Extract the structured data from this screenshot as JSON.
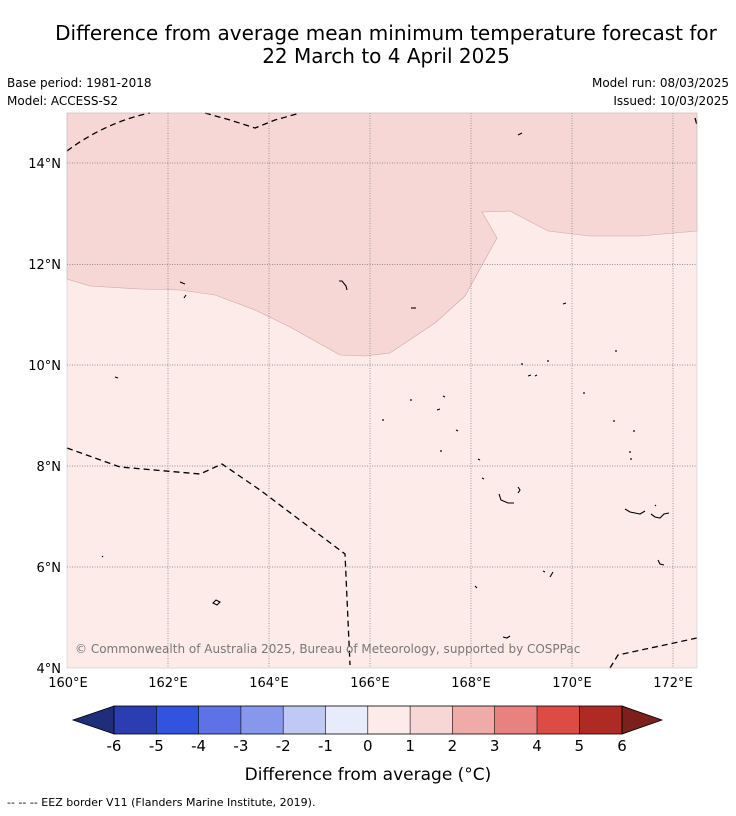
{
  "title": {
    "line1": "Difference from average mean minimum temperature forecast for",
    "line2": "22 March to 4 April 2025"
  },
  "meta": {
    "base_period": "Base period: 1981-2018",
    "model": "Model: ACCESS-S2",
    "model_run": "Model run: 08/03/2025",
    "issued": "Issued: 10/03/2025"
  },
  "map": {
    "lon_labels": [
      "160°E",
      "162°E",
      "164°E",
      "166°E",
      "168°E",
      "170°E",
      "172°E"
    ],
    "lat_labels": [
      "4°N",
      "6°N",
      "8°N",
      "10°N",
      "12°N",
      "14°N"
    ],
    "copyright": "© Commonwealth of Australia 2025, Bureau of Meteorology, supported by COSPPac",
    "extent": {
      "lon": [
        160,
        172.5
      ],
      "lat": [
        4,
        15
      ]
    },
    "colors": {
      "zone_plus_1_2": "#f7d7d5",
      "zone_0_1": "#fcebe9",
      "eez_border": "#000000"
    }
  },
  "legend": {
    "tick_labels": [
      "-6",
      "-5",
      "-4",
      "-3",
      "-2",
      "-1",
      "0",
      "1",
      "2",
      "3",
      "4",
      "5",
      "6"
    ],
    "colors": [
      "#1f2d7a",
      "#2a3eb1",
      "#3153e0",
      "#5c72e6",
      "#8798ec",
      "#c0c8f4",
      "#e8ebfb",
      "#fcebe9",
      "#f7d7d5",
      "#efaba8",
      "#e8827e",
      "#dc4c45",
      "#ae2a22",
      "#7d1f1c"
    ],
    "label": "Difference from average (°C)"
  },
  "footer": {
    "eez_note": "--  --  -- EEZ border V11 (Flanders Marine Institute, 2019)."
  }
}
